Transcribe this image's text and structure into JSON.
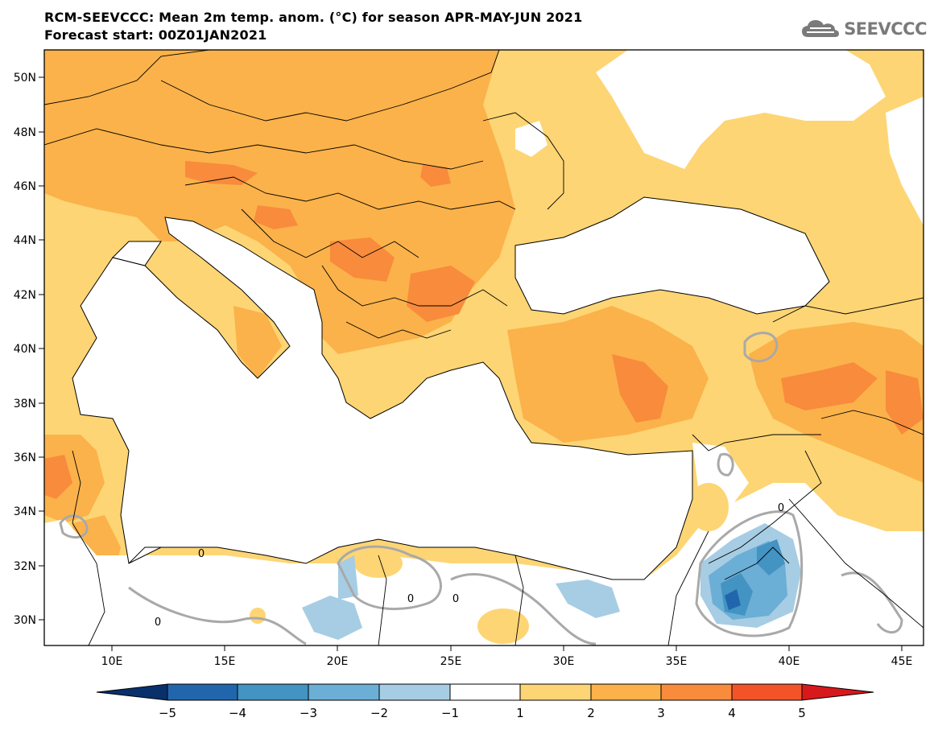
{
  "header": {
    "title_line1": "RCM-SEEVCCC: Mean 2m temp. anom. (°C) for season APR-MAY-JUN 2021",
    "title_line2": "Forecast start: 00Z01JAN2021",
    "logo_text": "SEEVCCC"
  },
  "map": {
    "lat_labels": [
      "50N",
      "48N",
      "46N",
      "44N",
      "42N",
      "40N",
      "38N",
      "36N",
      "34N",
      "32N",
      "30N"
    ],
    "lon_labels": [
      "10E",
      "15E",
      "20E",
      "25E",
      "30E",
      "35E",
      "40E",
      "45E"
    ],
    "contour_labels": [
      "0",
      "0",
      "0",
      "0",
      "0"
    ]
  },
  "colorbar": {
    "ticks": [
      "−5",
      "−4",
      "−3",
      "−2",
      "−1",
      "1",
      "2",
      "3",
      "4",
      "5"
    ],
    "colors": [
      "#08306b",
      "#2166ac",
      "#4393c3",
      "#6baed6",
      "#a6cde3",
      "#ffffff",
      "#fdd574",
      "#fbb24a",
      "#f98b3c",
      "#f4532a",
      "#d7191c"
    ]
  }
}
